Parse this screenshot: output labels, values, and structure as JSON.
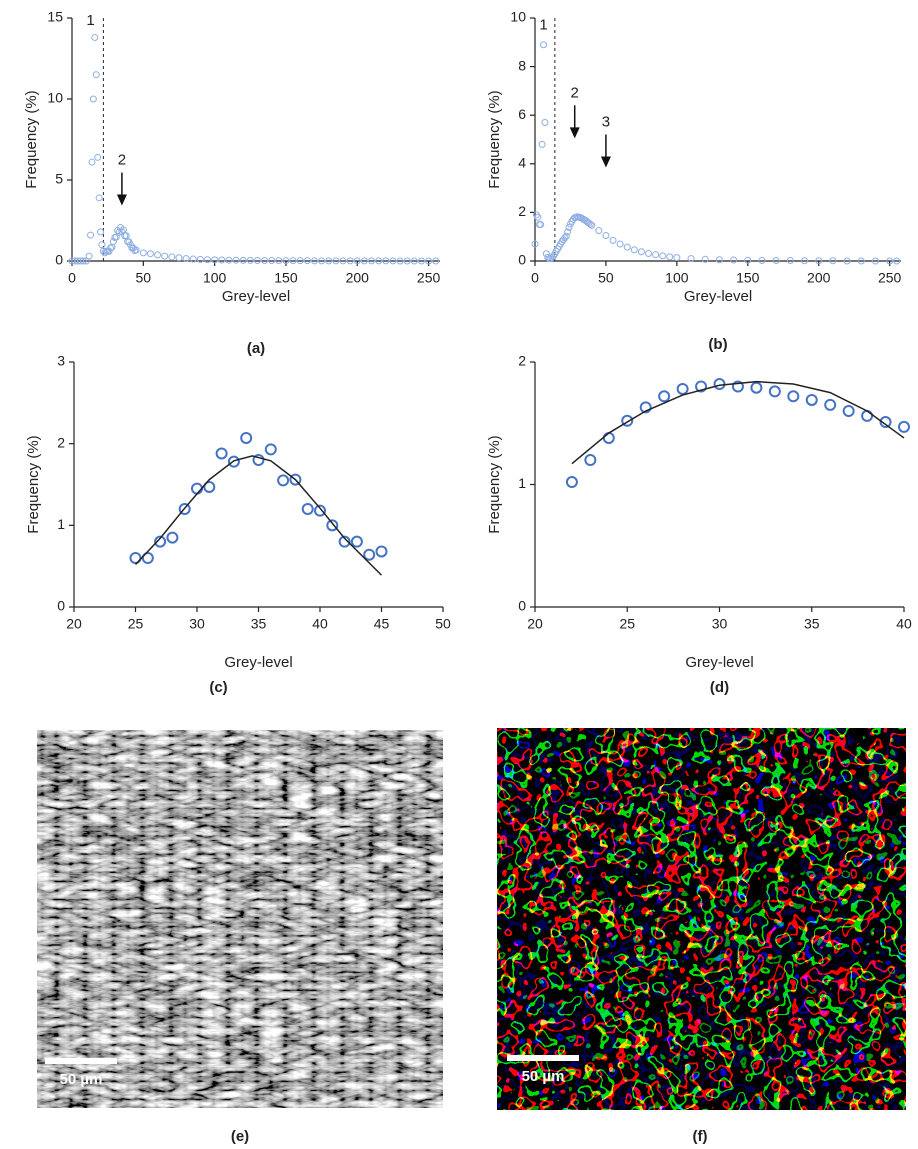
{
  "chart_data": [
    {
      "type": "scatter",
      "panel_label": "(a)",
      "x_label": "Grey-level",
      "y_label": "Frequency (%)",
      "xlim": [
        0,
        258
      ],
      "xticks": [
        0,
        50,
        100,
        150,
        200,
        250
      ],
      "ylim": [
        0,
        15
      ],
      "yticks": [
        0,
        5,
        10,
        15
      ],
      "threshold": 22,
      "annotations": [
        {
          "text": "1",
          "x": 13,
          "y": 14.8,
          "arrow": false
        },
        {
          "text": "2",
          "x": 35,
          "y": 6.2,
          "arrow": true
        }
      ],
      "series": [
        {
          "mode": "markers",
          "color": "#8eaee2",
          "x": [
            0,
            2,
            4,
            6,
            8,
            10,
            12,
            13,
            14,
            15,
            16,
            17,
            18,
            19,
            20,
            21,
            22,
            23,
            24,
            25,
            26,
            27,
            28,
            29,
            30,
            31,
            32,
            33,
            34,
            35,
            36,
            37,
            38,
            39,
            40,
            41,
            42,
            43,
            44,
            45,
            50,
            55,
            60,
            65,
            70,
            75,
            80,
            85,
            90,
            95,
            100,
            105,
            110,
            115,
            120,
            125,
            130,
            135,
            140,
            145,
            150,
            155,
            160,
            165,
            170,
            175,
            180,
            185,
            190,
            195,
            200,
            205,
            210,
            215,
            220,
            225,
            230,
            235,
            240,
            245,
            250,
            255
          ],
          "values": [
            0,
            0,
            0,
            0,
            0,
            0,
            0.3,
            1.6,
            6.1,
            10,
            13.8,
            11.5,
            6.4,
            3.9,
            1.8,
            1,
            0.6,
            0.5,
            0.6,
            0.6,
            0.6,
            0.8,
            0.85,
            1.2,
            1.45,
            1.47,
            1.88,
            1.78,
            2.07,
            1.8,
            1.93,
            1.55,
            1.56,
            1.2,
            1.18,
            1,
            0.8,
            0.8,
            0.64,
            0.68,
            0.5,
            0.45,
            0.38,
            0.3,
            0.25,
            0.2,
            0.15,
            0.12,
            0.1,
            0.08,
            0.07,
            0.06,
            0.05,
            0.05,
            0.04,
            0.04,
            0.03,
            0.03,
            0.03,
            0.02,
            0.02,
            0.02,
            0.02,
            0.02,
            0.01,
            0.01,
            0.01,
            0.01,
            0.01,
            0.01,
            0.01,
            0.01,
            0.01,
            0.01,
            0.01,
            0.01,
            0,
            0,
            0,
            0,
            0,
            0
          ]
        }
      ]
    },
    {
      "type": "scatter",
      "panel_label": "(b)",
      "x_label": "Grey-level",
      "y_label": "Frequency (%)",
      "xlim": [
        0,
        258
      ],
      "xticks": [
        0,
        50,
        100,
        150,
        200,
        250
      ],
      "ylim": [
        0,
        10
      ],
      "yticks": [
        0,
        2,
        4,
        6,
        8,
        10
      ],
      "threshold": 14,
      "annotations": [
        {
          "text": "1",
          "x": 6,
          "y": 9.7,
          "arrow": false
        },
        {
          "text": "2",
          "x": 28,
          "y": 6.9,
          "arrow": true
        },
        {
          "text": "3",
          "x": 50,
          "y": 5.7,
          "arrow": true
        }
      ],
      "series": [
        {
          "mode": "markers",
          "color": "#8eaee2",
          "x": [
            0,
            1,
            2,
            3,
            4,
            5,
            6,
            7,
            8,
            9,
            10,
            11,
            12,
            13,
            14,
            15,
            16,
            17,
            18,
            19,
            20,
            21,
            22,
            23,
            24,
            25,
            26,
            27,
            28,
            29,
            30,
            31,
            32,
            33,
            34,
            35,
            36,
            37,
            38,
            39,
            40,
            45,
            50,
            55,
            60,
            65,
            70,
            75,
            80,
            85,
            90,
            95,
            100,
            110,
            120,
            130,
            140,
            150,
            160,
            170,
            180,
            190,
            200,
            210,
            220,
            230,
            240,
            250,
            255
          ],
          "values": [
            0.7,
            1.9,
            1.8,
            1.5,
            1.5,
            4.8,
            8.9,
            5.7,
            0.3,
            0.15,
            0.1,
            0.1,
            0.15,
            0.2,
            0.3,
            0.4,
            0.5,
            0.6,
            0.7,
            0.8,
            0.88,
            0.95,
            1.02,
            1.2,
            1.38,
            1.52,
            1.63,
            1.72,
            1.78,
            1.8,
            1.82,
            1.8,
            1.79,
            1.76,
            1.72,
            1.69,
            1.65,
            1.6,
            1.56,
            1.51,
            1.47,
            1.25,
            1.05,
            0.85,
            0.7,
            0.57,
            0.46,
            0.38,
            0.31,
            0.26,
            0.21,
            0.17,
            0.14,
            0.1,
            0.07,
            0.05,
            0.04,
            0.03,
            0.02,
            0.02,
            0.02,
            0.01,
            0.01,
            0.01,
            0,
            0,
            0,
            0,
            0
          ]
        }
      ]
    },
    {
      "type": "scatter",
      "panel_label": "(c)",
      "x_label": "Grey-level",
      "y_label": "Frequency (%)",
      "xlim": [
        20,
        50
      ],
      "xticks": [
        20,
        25,
        30,
        35,
        40,
        45,
        50
      ],
      "ylim": [
        0,
        3
      ],
      "yticks": [
        0,
        1,
        2,
        3
      ],
      "series": [
        {
          "mode": "markers",
          "color": "#4472c4",
          "x": [
            25,
            26,
            27,
            28,
            29,
            30,
            31,
            32,
            33,
            34,
            35,
            36,
            37,
            38,
            39,
            40,
            41,
            42,
            43,
            44,
            45
          ],
          "values": [
            0.6,
            0.6,
            0.8,
            0.85,
            1.2,
            1.45,
            1.47,
            1.88,
            1.78,
            2.07,
            1.8,
            1.93,
            1.55,
            1.56,
            1.2,
            1.18,
            1,
            0.8,
            0.8,
            0.64,
            0.68
          ]
        },
        {
          "mode": "line",
          "color": "#222222",
          "x": [
            25,
            27,
            29,
            31,
            33,
            34.5,
            36,
            38,
            40,
            42,
            45
          ],
          "values": [
            0.52,
            0.84,
            1.21,
            1.56,
            1.79,
            1.85,
            1.79,
            1.56,
            1.21,
            0.84,
            0.39
          ]
        }
      ]
    },
    {
      "type": "scatter",
      "panel_label": "(d)",
      "x_label": "Grey-level",
      "y_label": "Frequency (%)",
      "xlim": [
        20,
        40
      ],
      "xticks": [
        20,
        25,
        30,
        35,
        40
      ],
      "ylim": [
        0,
        2
      ],
      "yticks": [
        0,
        1,
        2
      ],
      "series": [
        {
          "mode": "markers",
          "color": "#4472c4",
          "x": [
            22,
            23,
            24,
            25,
            26,
            27,
            28,
            29,
            30,
            31,
            32,
            33,
            34,
            35,
            36,
            37,
            38,
            39,
            40
          ],
          "values": [
            1.02,
            1.2,
            1.38,
            1.52,
            1.63,
            1.72,
            1.78,
            1.8,
            1.82,
            1.8,
            1.79,
            1.76,
            1.72,
            1.69,
            1.65,
            1.6,
            1.56,
            1.51,
            1.47
          ]
        },
        {
          "mode": "line",
          "color": "#222222",
          "x": [
            22,
            24,
            26,
            28,
            30,
            32,
            34,
            36,
            38,
            40
          ],
          "values": [
            1.17,
            1.42,
            1.6,
            1.73,
            1.81,
            1.84,
            1.82,
            1.75,
            1.6,
            1.38
          ]
        }
      ]
    }
  ],
  "images": [
    {
      "panel_label": "(e)",
      "scale_bar": "50 µm"
    },
    {
      "panel_label": "(f)",
      "scale_bar": "50 µm"
    }
  ]
}
